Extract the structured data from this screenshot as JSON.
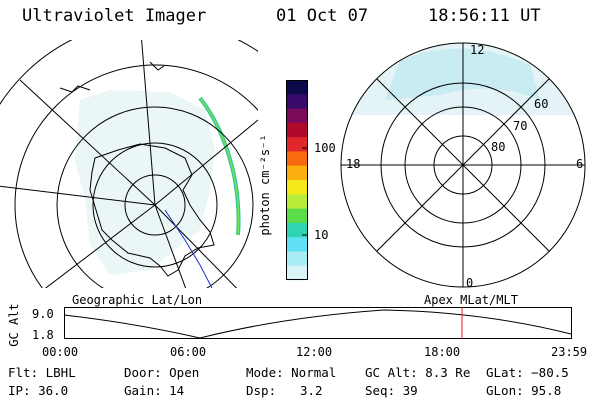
{
  "header": {
    "instrument": "Ultraviolet Imager",
    "date": "01 Oct 07",
    "time": "18:56:11 UT"
  },
  "colorbar": {
    "unit_label": "photon cm⁻²s⁻¹",
    "tick_labels": [
      "100",
      "10"
    ],
    "colors": [
      "#0a0a4a",
      "#3a0a6a",
      "#7a0a5a",
      "#b00a2a",
      "#e0282a",
      "#f86a10",
      "#fcb010",
      "#f4e81a",
      "#b8ec3a",
      "#5cdc4a",
      "#30d4b4",
      "#60e0f4",
      "#a8ecf4",
      "#d8f4f6"
    ]
  },
  "left_map": {
    "title": "Geographic Lat/Lon"
  },
  "right_map": {
    "title": "Apex MLat/MLT",
    "mlt_labels": [
      "12",
      "18",
      "6",
      "0"
    ],
    "lat_labels": [
      "60",
      "70",
      "80"
    ]
  },
  "altitude_plot": {
    "ylabel": "GC Alt",
    "ytick_labels": [
      "9.0",
      "1.8"
    ],
    "xtick_labels": [
      "00:00",
      "06:00",
      "12:00",
      "18:00",
      "23:59"
    ],
    "current_marker_color": "#e02020"
  },
  "info": {
    "row1": {
      "flt": "Flt: LBHL",
      "door": "Door: Open",
      "mode": "Mode: Normal",
      "gcalt": "GC Alt: 8.3 Re",
      "glat": "GLat: −80.5"
    },
    "row2": {
      "ip": "IP: 36.0",
      "gain": "Gain: 14",
      "dsp_label": "Dsp:",
      "dsp_value": "3.2",
      "seq": "Seq: 39",
      "glon": "GLon:  95.8"
    }
  }
}
